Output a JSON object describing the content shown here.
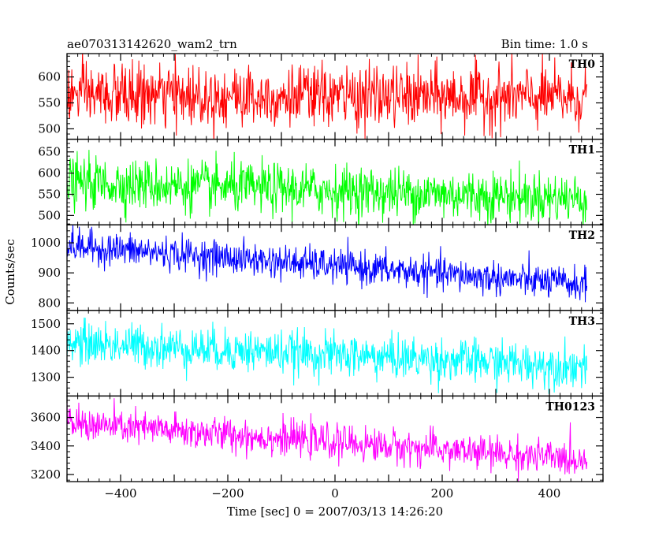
{
  "header": {
    "title": "ae070313142620_wam2_trn",
    "bin_time": "Bin time: 1.0 s"
  },
  "axes": {
    "ylabel": "Counts/sec",
    "xlabel": "Time [sec] 0 = 2007/03/13 14:26:20"
  },
  "chart_data": {
    "type": "line",
    "title": "ae070313142620_wam2_trn",
    "subtitle": "Bin time: 1.0 s",
    "xlabel": "Time [sec] 0 = 2007/03/13 14:26:20",
    "ylabel": "Counts/sec",
    "xlim": [
      -500,
      500
    ],
    "x_start": -500,
    "x_end": 470,
    "x_step": 1,
    "x_ticks": [
      -400,
      -200,
      0,
      200,
      400
    ],
    "x_tick_labels": [
      "−400",
      "−200",
      "0",
      "200",
      "400"
    ],
    "series": [
      {
        "name": "TH0",
        "color": "#ff0000",
        "ylim": [
          480,
          645
        ],
        "trend_start": 565,
        "trend_end": 560,
        "noise_sd": 30,
        "y_ticks": [
          500,
          550,
          600
        ],
        "y_tick_labels": [
          "500",
          "550",
          "600"
        ]
      },
      {
        "name": "TH1",
        "color": "#00ff00",
        "ylim": [
          478,
          680
        ],
        "trend_start": 578,
        "trend_end": 540,
        "noise_sd": 30,
        "y_ticks": [
          500,
          550,
          600,
          650
        ],
        "y_tick_labels": [
          "500",
          "550",
          "600",
          "650"
        ]
      },
      {
        "name": "TH2",
        "color": "#0000ff",
        "ylim": [
          775,
          1060
        ],
        "trend_start": 990,
        "trend_end": 860,
        "noise_sd": 28,
        "y_ticks": [
          800,
          900,
          1000
        ],
        "y_tick_labels": [
          "800",
          "900",
          "1000"
        ]
      },
      {
        "name": "TH3",
        "color": "#00ffff",
        "ylim": [
          1230,
          1550
        ],
        "trend_start": 1430,
        "trend_end": 1340,
        "noise_sd": 40,
        "y_ticks": [
          1300,
          1400,
          1500
        ],
        "y_tick_labels": [
          "1300",
          "1400",
          "1500"
        ]
      },
      {
        "name": "TH0123",
        "color": "#ff00ff",
        "ylim": [
          3150,
          3750
        ],
        "trend_start": 3560,
        "trend_end": 3300,
        "noise_sd": 60,
        "y_ticks": [
          3200,
          3400,
          3600
        ],
        "y_tick_labels": [
          "3200",
          "3400",
          "3600"
        ]
      }
    ]
  }
}
